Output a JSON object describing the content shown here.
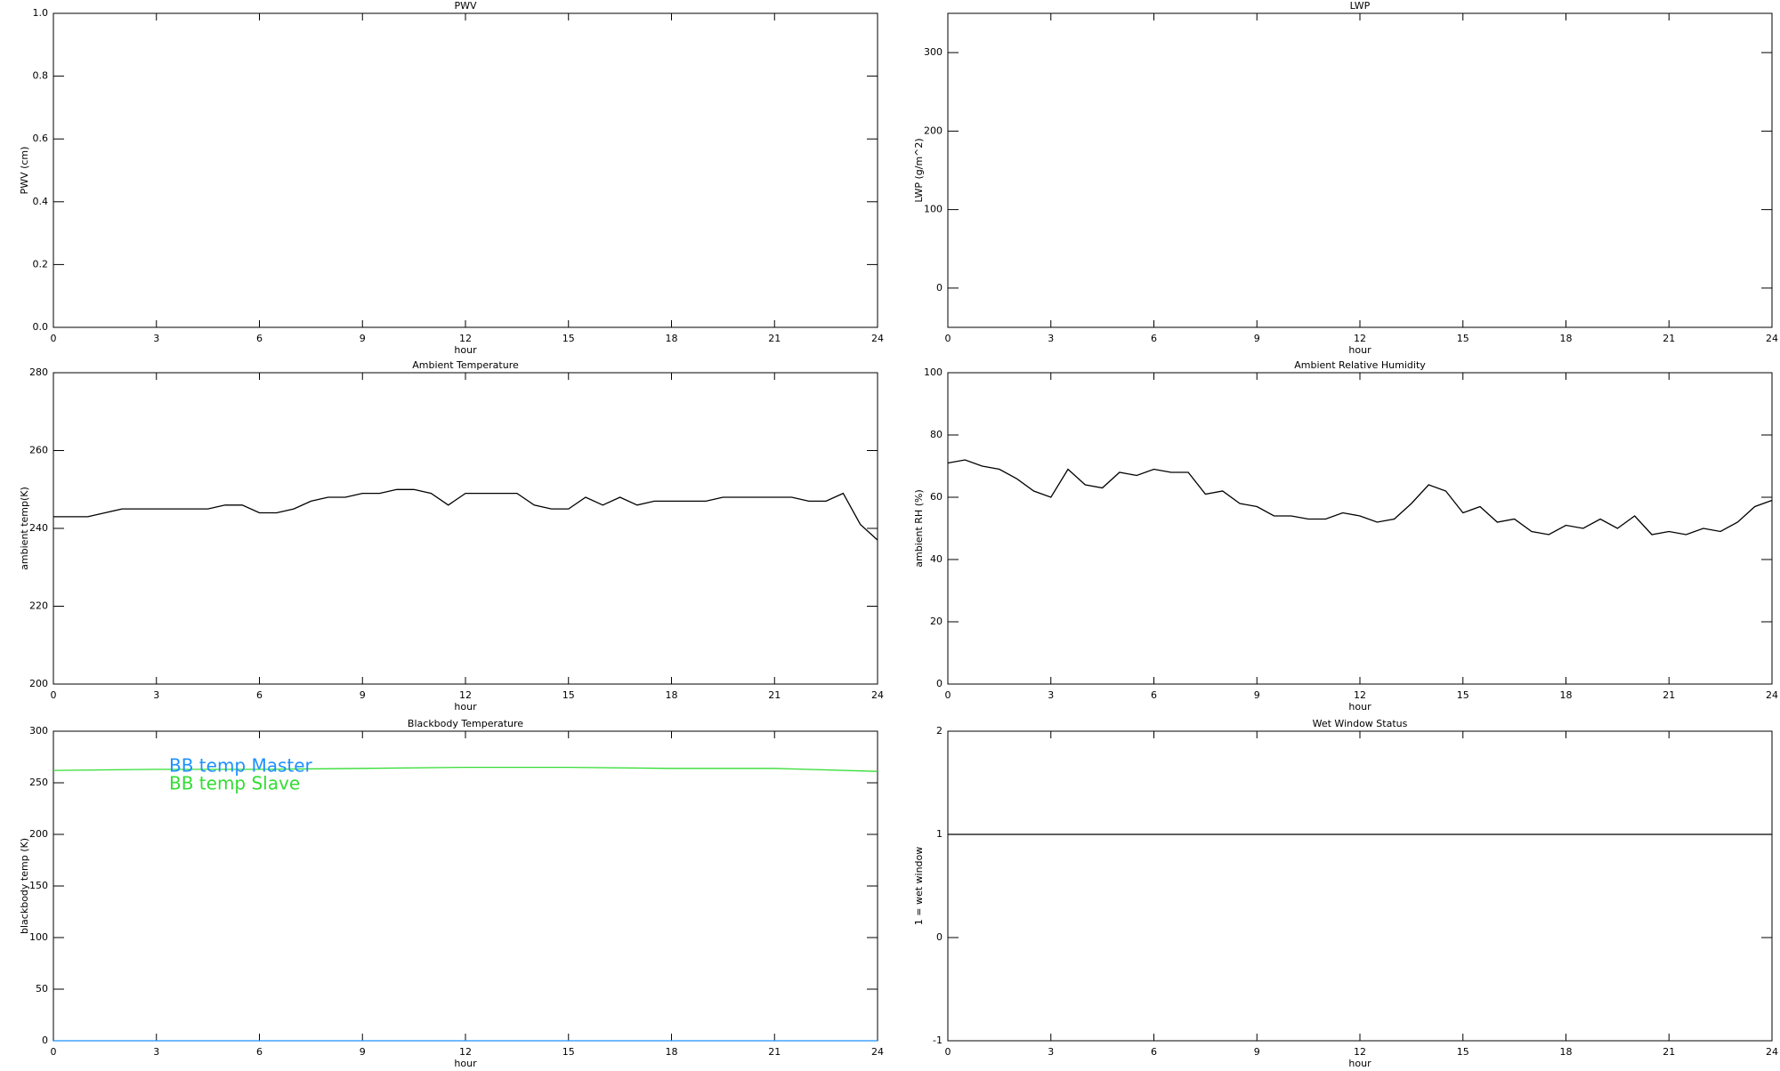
{
  "chart_data": [
    {
      "type": "line",
      "title": "PWV",
      "xlabel": "hour",
      "ylabel": "PWV (cm)",
      "xlim": [
        0,
        24
      ],
      "xticks": [
        0,
        3,
        6,
        9,
        12,
        15,
        18,
        21,
        24
      ],
      "ylim": [
        0,
        1
      ],
      "yticks": [
        {
          "value": 0,
          "label": "0.0"
        },
        0.2,
        0.4,
        0.6,
        0.8,
        {
          "value": 1,
          "label": "1.0"
        }
      ],
      "x": [],
      "series": []
    },
    {
      "type": "line",
      "title": "LWP",
      "xlabel": "hour",
      "ylabel": "LWP (g/m^2)",
      "xlim": [
        0,
        24
      ],
      "xticks": [
        0,
        3,
        6,
        9,
        12,
        15,
        18,
        21,
        24
      ],
      "ylim": [
        -50,
        350
      ],
      "yticks": [
        0,
        100,
        200,
        300
      ],
      "x": [],
      "series": []
    },
    {
      "type": "line",
      "title": "Ambient Temperature",
      "xlabel": "hour",
      "ylabel": "ambient temp(K)",
      "xlim": [
        0,
        24
      ],
      "xticks": [
        0,
        3,
        6,
        9,
        12,
        15,
        18,
        21,
        24
      ],
      "ylim": [
        200,
        280
      ],
      "yticks": [
        200,
        220,
        240,
        260,
        280
      ],
      "x": [
        0,
        0.5,
        1,
        1.5,
        2,
        2.5,
        3,
        3.5,
        4,
        4.5,
        5,
        5.5,
        6,
        6.5,
        7,
        7.5,
        8,
        8.5,
        9,
        9.5,
        10,
        10.5,
        11,
        11.5,
        12,
        12.5,
        13,
        13.5,
        14,
        14.5,
        15,
        15.5,
        16,
        16.5,
        17,
        17.5,
        18,
        18.5,
        19,
        19.5,
        20,
        20.5,
        21,
        21.5,
        22,
        22.5,
        23,
        23.5,
        24
      ],
      "series": [
        {
          "color": "#000000",
          "values": [
            243,
            243,
            243,
            244,
            245,
            245,
            245,
            245,
            245,
            245,
            246,
            246,
            244,
            244,
            245,
            247,
            248,
            248,
            249,
            249,
            250,
            250,
            249,
            246,
            249,
            249,
            249,
            249,
            246,
            245,
            245,
            248,
            246,
            248,
            246,
            247,
            247,
            247,
            247,
            248,
            248,
            248,
            248,
            248,
            247,
            247,
            249,
            241,
            237
          ]
        }
      ]
    },
    {
      "type": "line",
      "title": "Ambient Relative Humidity",
      "xlabel": "hour",
      "ylabel": "ambient RH (%)",
      "xlim": [
        0,
        24
      ],
      "xticks": [
        0,
        3,
        6,
        9,
        12,
        15,
        18,
        21,
        24
      ],
      "ylim": [
        0,
        100
      ],
      "yticks": [
        0,
        20,
        40,
        60,
        80,
        100
      ],
      "x": [
        0,
        0.5,
        1,
        1.5,
        2,
        2.5,
        3,
        3.5,
        4,
        4.5,
        5,
        5.5,
        6,
        6.5,
        7,
        7.5,
        8,
        8.5,
        9,
        9.5,
        10,
        10.5,
        11,
        11.5,
        12,
        12.5,
        13,
        13.5,
        14,
        14.5,
        15,
        15.5,
        16,
        16.5,
        17,
        17.5,
        18,
        18.5,
        19,
        19.5,
        20,
        20.5,
        21,
        21.5,
        22,
        22.5,
        23,
        23.5,
        24
      ],
      "series": [
        {
          "color": "#000000",
          "values": [
            71,
            72,
            70,
            69,
            66,
            62,
            60,
            69,
            64,
            63,
            68,
            67,
            69,
            68,
            68,
            61,
            62,
            58,
            57,
            54,
            54,
            53,
            53,
            55,
            54,
            52,
            53,
            58,
            64,
            62,
            55,
            57,
            52,
            53,
            49,
            48,
            51,
            50,
            53,
            50,
            54,
            48,
            49,
            48,
            50,
            49,
            52,
            57,
            59
          ]
        }
      ]
    },
    {
      "type": "line",
      "title": "Blackbody Temperature",
      "xlabel": "hour",
      "ylabel": "blackbody temp (K)",
      "xlim": [
        0,
        24
      ],
      "xticks": [
        0,
        3,
        6,
        9,
        12,
        15,
        18,
        21,
        24
      ],
      "ylim": [
        0,
        300
      ],
      "yticks": [
        0,
        50,
        100,
        150,
        200,
        250,
        300
      ],
      "x": [
        0,
        3,
        6,
        9,
        12,
        15,
        18,
        21,
        24
      ],
      "series": [
        {
          "name": "BB temp Master",
          "color": "#1e90ff",
          "values": [
            0,
            0,
            0,
            0,
            0,
            0,
            0,
            0,
            0
          ]
        },
        {
          "name": "BB temp Slave",
          "color": "#33dd33",
          "values": [
            262,
            263,
            263,
            264,
            265,
            265,
            264,
            264,
            261
          ]
        }
      ]
    },
    {
      "type": "line",
      "title": "Wet Window Status",
      "xlabel": "hour",
      "ylabel": "1 = wet window",
      "xlim": [
        0,
        24
      ],
      "xticks": [
        0,
        3,
        6,
        9,
        12,
        15,
        18,
        21,
        24
      ],
      "ylim": [
        -1,
        2
      ],
      "yticks": [
        -1,
        0,
        1,
        2
      ],
      "x": [
        0,
        24
      ],
      "series": [
        {
          "color": "#000000",
          "values": [
            1,
            1
          ]
        }
      ]
    }
  ]
}
